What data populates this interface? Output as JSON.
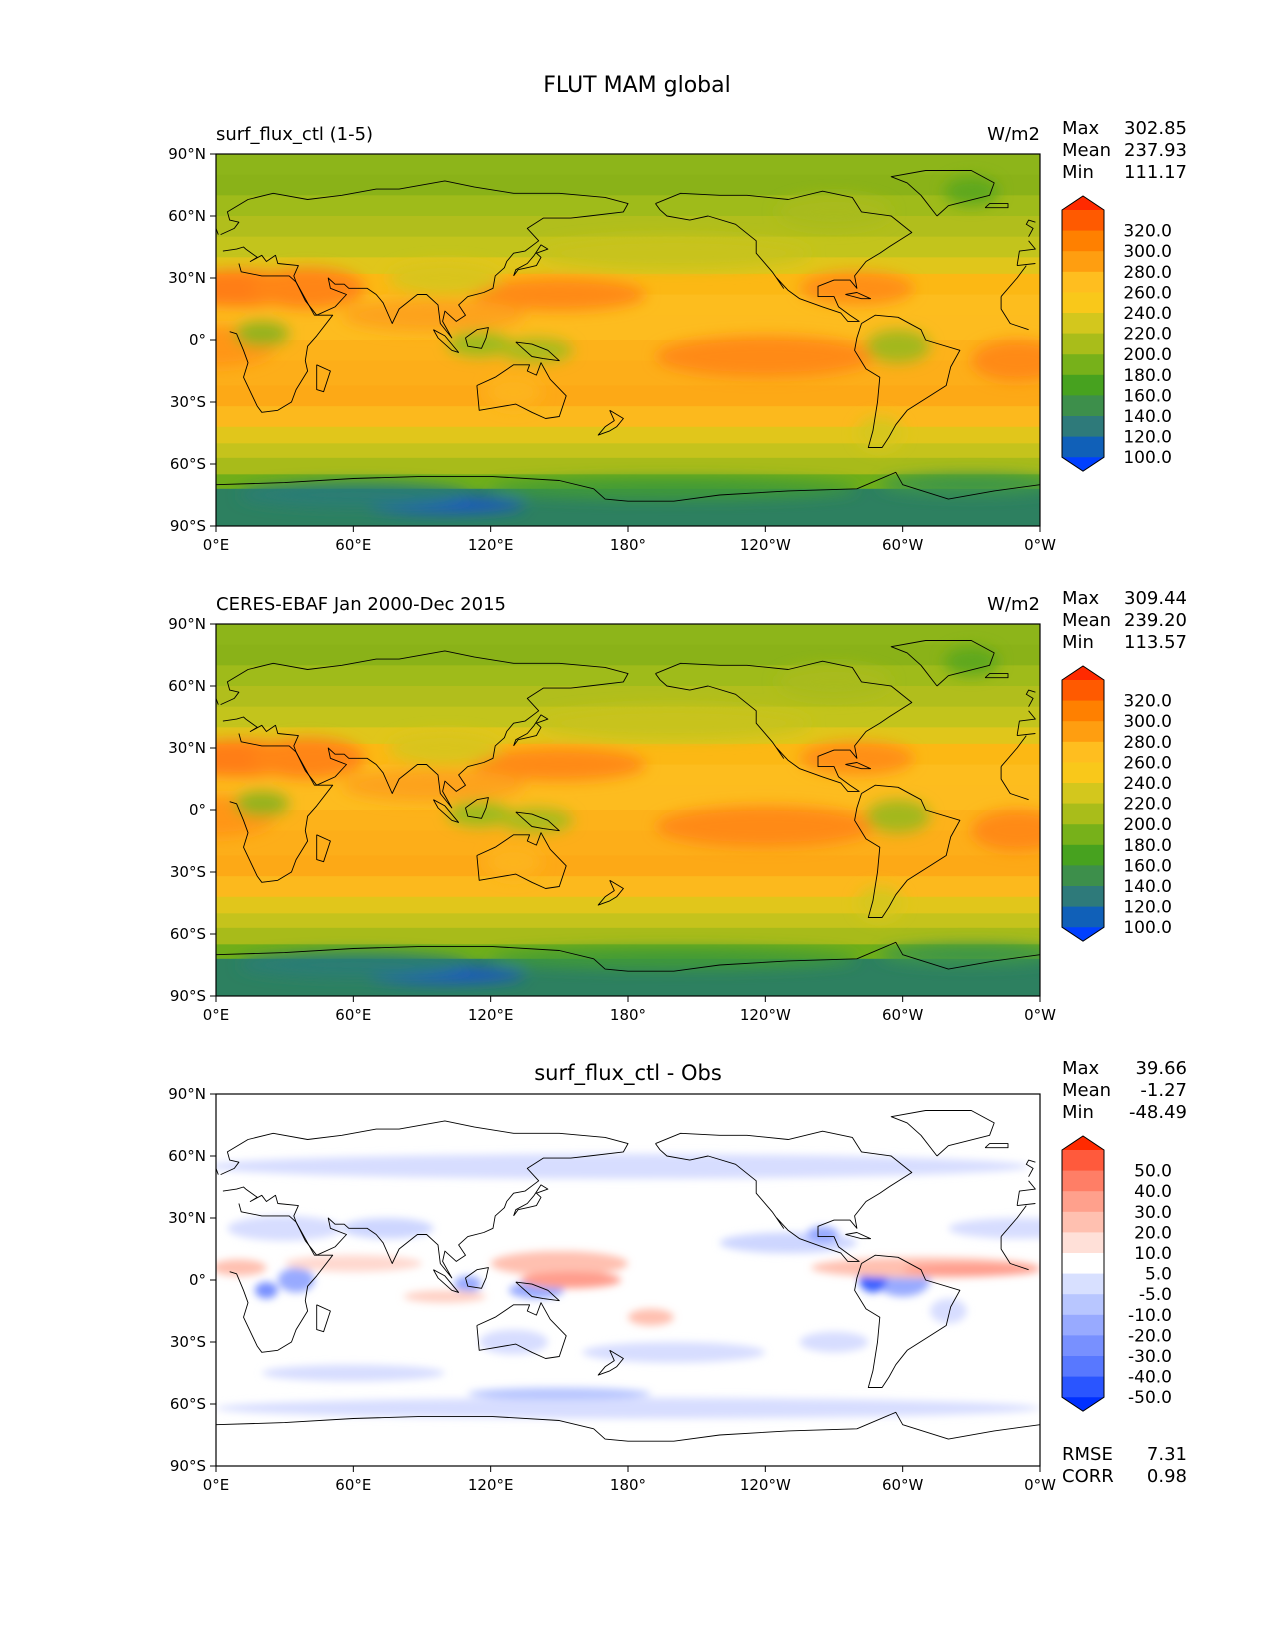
{
  "figure_title": "FLUT MAM global",
  "lat_ticks": [
    "90°N",
    "60°N",
    "30°N",
    "0°",
    "30°S",
    "60°S",
    "90°S"
  ],
  "lon_ticks": [
    "0°E",
    "60°E",
    "120°E",
    "180°",
    "120°W",
    "60°W",
    "0°W"
  ],
  "chart_data": [
    {
      "type": "heatmap",
      "title": "",
      "left_label": "surf_flux_ctl (1-5)",
      "units_label": "W/m2",
      "stats": {
        "max_label": "Max",
        "max": "302.85",
        "mean_label": "Mean",
        "mean": "237.93",
        "min_label": "Min",
        "min": "111.17"
      },
      "colorbar": {
        "labels": [
          "320.0",
          "300.0",
          "280.0",
          "260.0",
          "240.0",
          "220.0",
          "200.0",
          "180.0",
          "160.0",
          "140.0",
          "120.0",
          "100.0"
        ],
        "colors": [
          "#ff2a00",
          "#ff5a00",
          "#ff8000",
          "#ff9e10",
          "#ffbe1f",
          "#f9c81a",
          "#d3c71d",
          "#a9bd1a",
          "#77b11a",
          "#47a21f",
          "#3d8f4b",
          "#2e7a7a",
          "#1060b8",
          "#0040ff"
        ]
      }
    },
    {
      "type": "heatmap",
      "title": "",
      "left_label": "CERES-EBAF Jan 2000-Dec 2015",
      "units_label": "W/m2",
      "stats": {
        "max_label": "Max",
        "max": "309.44",
        "mean_label": "Mean",
        "mean": "239.20",
        "min_label": "Min",
        "min": "113.57"
      },
      "colorbar": {
        "labels": [
          "320.0",
          "300.0",
          "280.0",
          "260.0",
          "240.0",
          "220.0",
          "200.0",
          "180.0",
          "160.0",
          "140.0",
          "120.0",
          "100.0"
        ],
        "colors": [
          "#ff2a00",
          "#ff5a00",
          "#ff8000",
          "#ff9e10",
          "#ffbe1f",
          "#f9c81a",
          "#d3c71d",
          "#a9bd1a",
          "#77b11a",
          "#47a21f",
          "#3d8f4b",
          "#2e7a7a",
          "#1060b8",
          "#0040ff"
        ]
      }
    },
    {
      "type": "heatmap",
      "title": "surf_flux_ctl - Obs",
      "left_label": "",
      "units_label": "",
      "stats": {
        "max_label": "Max",
        "max": "39.66",
        "mean_label": "Mean",
        "mean": "-1.27",
        "min_label": "Min",
        "min": "-48.49"
      },
      "colorbar": {
        "labels": [
          "50.0",
          "40.0",
          "30.0",
          "20.0",
          "10.0",
          "5.0",
          "-5.0",
          "-10.0",
          "-20.0",
          "-30.0",
          "-40.0",
          "-50.0"
        ],
        "colors": [
          "#ff2a00",
          "#ff5a3c",
          "#ff7e66",
          "#ffa08c",
          "#ffc0b0",
          "#ffe0d8",
          "#ffffff",
          "#d8e0ff",
          "#b8c6ff",
          "#98aaff",
          "#7890ff",
          "#5878ff",
          "#2a55ff",
          "#0030ff"
        ]
      },
      "metrics": {
        "rmse_label": "RMSE",
        "rmse": "7.31",
        "corr_label": "CORR",
        "corr": "0.98"
      }
    }
  ]
}
